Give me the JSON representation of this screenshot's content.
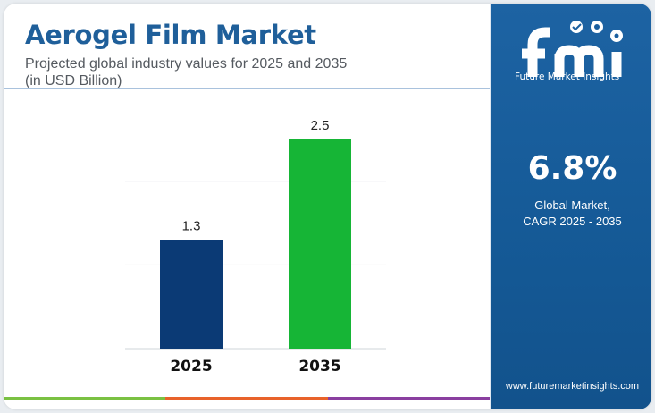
{
  "header": {
    "title": "Aerogel Film Market",
    "subtitle_line1": "Projected global industry values for 2025 and 2035",
    "subtitle_line2": "(in USD Billion)"
  },
  "chart_data": {
    "type": "bar",
    "categories": [
      "2025",
      "2035"
    ],
    "values": [
      1.3,
      2.5
    ],
    "value_labels": [
      "1.3",
      "2.5"
    ],
    "bar_colors": [
      "#0b3a75",
      "#16b536"
    ],
    "title": "",
    "xlabel": "",
    "ylabel": "",
    "ylim": [
      0,
      2.5
    ],
    "grid": true,
    "legend": "none"
  },
  "side_panel": {
    "logo_name": "fmi-logo",
    "logo_caption": "Future Market Insights",
    "cagr_value": "6.8%",
    "cagr_label_line1": "Global Market,",
    "cagr_label_line2": "CAGR 2025 - 2035",
    "website": "www.futuremarketinsights.com",
    "background_color": "#1a5e9e"
  },
  "footer_stripe_colors": [
    "#7ac142",
    "#e8622a",
    "#8a3fa0"
  ]
}
